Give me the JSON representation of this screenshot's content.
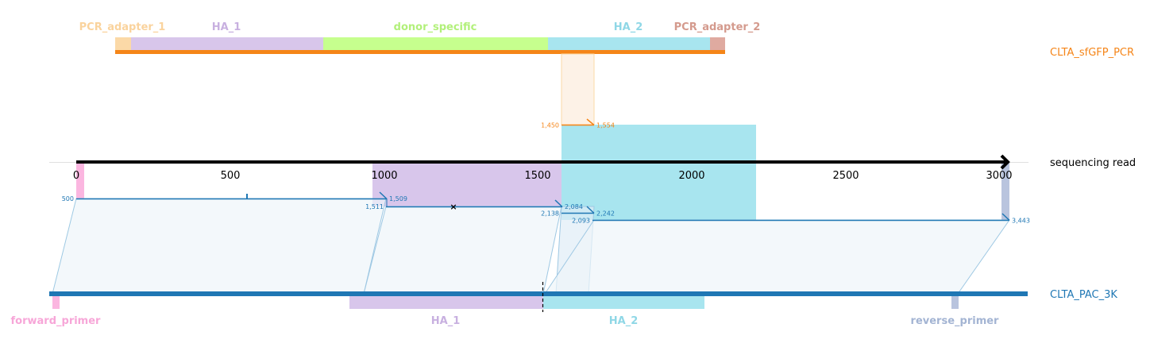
{
  "tracks": {
    "donor": {
      "name": "CLTA_sfGFP_PCR",
      "color": "#f58518"
    },
    "read": {
      "name": "sequencing read",
      "color": "#000000"
    },
    "ref": {
      "name": "CLTA_PAC_3K",
      "color": "#1f77b4"
    }
  },
  "top_features": [
    {
      "label": "PCR_adapter_1",
      "color": "#fbd9a7"
    },
    {
      "label": "HA_1",
      "color": "#d8c6eb"
    },
    {
      "label": "donor_specific",
      "color": "#c6ff8e"
    },
    {
      "label": "HA_2",
      "color": "#a8e5ef"
    },
    {
      "label": "PCR_adapter_2",
      "color": "#dfaaa0"
    }
  ],
  "label_colors": {
    "PCR_adapter_1": "#fad39d",
    "HA_1": "#c8b0e0",
    "donor_specific": "#b2f07a",
    "HA_2": "#8fd7e6",
    "PCR_adapter_2": "#d49a8d",
    "forward_primer": "#f7a6d8",
    "reverse_primer": "#a3b4d3"
  },
  "axis": {
    "ticks": [
      "0",
      "500",
      "1000",
      "1500",
      "2000",
      "2500",
      "3000"
    ]
  },
  "read_features": [
    {
      "label": "forward_primer",
      "color": "#fbb6e0"
    },
    {
      "label": "HA_1",
      "color": "#d8c6eb"
    },
    {
      "label": "HA_2",
      "color": "#a8e5ef"
    },
    {
      "label": "reverse_primer",
      "color": "#b9c4de"
    }
  ],
  "bottom_features": [
    {
      "label": "forward_primer",
      "color": "#fbb6e0"
    },
    {
      "label": "HA_1",
      "color": "#d8c6eb"
    },
    {
      "label": "HA_2",
      "color": "#a8e5ef"
    },
    {
      "label": "reverse_primer",
      "color": "#b9c4de"
    }
  ],
  "alignments": [
    {
      "id": "ref-1",
      "track": "ref",
      "start": "500",
      "end": "1,509"
    },
    {
      "id": "ref-2",
      "track": "ref",
      "start": "1,511",
      "end": "2,084"
    },
    {
      "id": "ref-3",
      "track": "ref",
      "start": "2,138",
      "end": "2,242"
    },
    {
      "id": "ref-4",
      "track": "ref",
      "start": "2,093",
      "end": "3,443"
    },
    {
      "id": "donor-1",
      "track": "donor",
      "start": "1,450",
      "end": "1,554"
    }
  ],
  "markers": {
    "mismatch": "×"
  }
}
